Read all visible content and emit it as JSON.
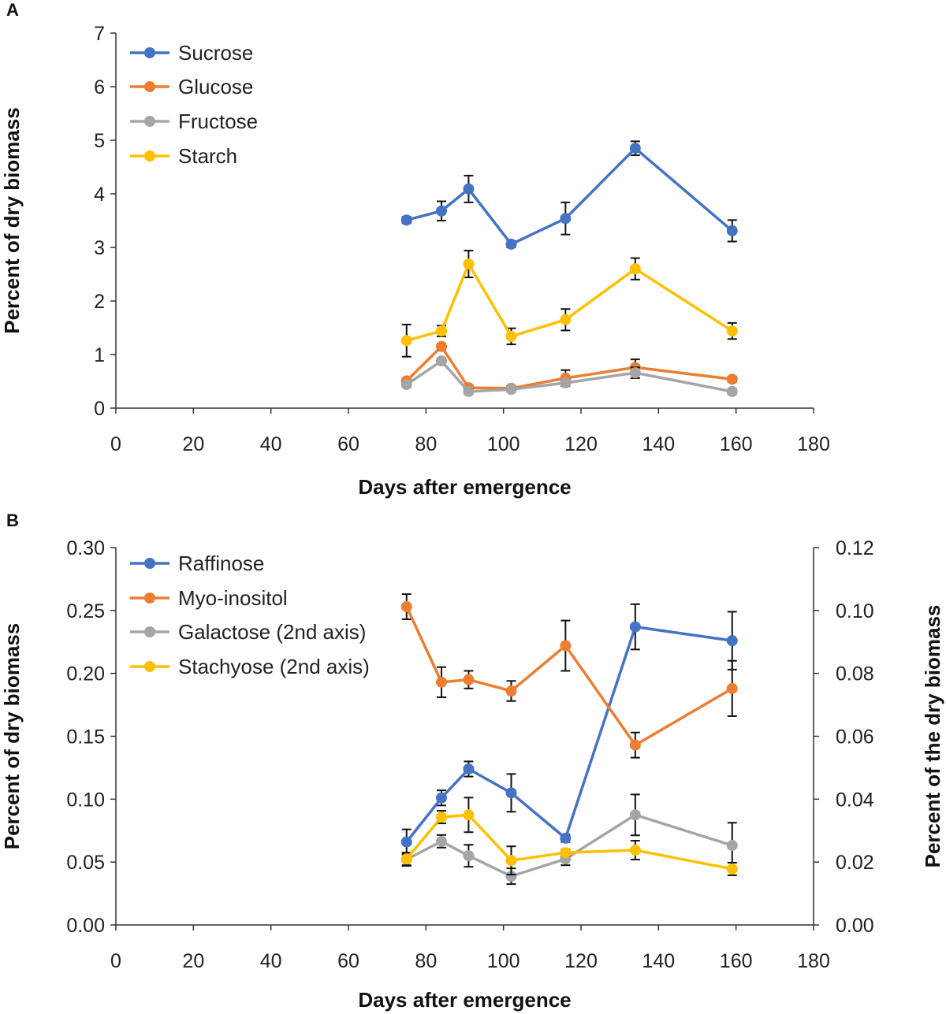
{
  "chart_data": [
    {
      "panel_label": "A",
      "type": "line",
      "xlabel": "Days after emergence",
      "ylabel": "Percent of dry biomass",
      "xlim": [
        0,
        180
      ],
      "xticks": [
        0,
        20,
        40,
        60,
        80,
        100,
        120,
        140,
        160,
        180
      ],
      "ylim": [
        0,
        7
      ],
      "yticks": [
        "0",
        "1",
        "2",
        "3",
        "4",
        "5",
        "6",
        "7"
      ],
      "grid": false,
      "legend": "top-left",
      "x": [
        75,
        84,
        91,
        102,
        116,
        134,
        159
      ],
      "series": [
        {
          "name": "Sucrose",
          "color": "#4472C4",
          "axis": "left",
          "values": [
            3.51,
            3.68,
            4.09,
            3.06,
            3.54,
            4.85,
            3.31
          ],
          "errors": [
            0.06,
            0.18,
            0.25,
            0.06,
            0.3,
            0.13,
            0.2
          ]
        },
        {
          "name": "Glucose",
          "color": "#ED7D31",
          "axis": "left",
          "values": [
            0.51,
            1.15,
            0.38,
            0.37,
            0.56,
            0.76,
            0.54
          ],
          "errors": [
            0.05,
            0.05,
            0.05,
            0.05,
            0.15,
            0.15,
            0.05
          ]
        },
        {
          "name": "Fructose",
          "color": "#A5A5A5",
          "axis": "left",
          "values": [
            0.44,
            0.88,
            0.31,
            0.35,
            0.47,
            0.66,
            0.31
          ],
          "errors": [
            0.05,
            0.05,
            0.05,
            0.05,
            0.05,
            0.1,
            0.05
          ]
        },
        {
          "name": "Starch",
          "color": "#FFC000",
          "axis": "left",
          "values": [
            1.26,
            1.44,
            2.69,
            1.34,
            1.65,
            2.6,
            1.44
          ],
          "errors": [
            0.3,
            0.1,
            0.25,
            0.15,
            0.2,
            0.2,
            0.15
          ]
        }
      ]
    },
    {
      "panel_label": "B",
      "type": "line",
      "xlabel": "Days after emergence",
      "ylabel": "Percent of dry biomass",
      "y2label": "Percent of the dry biomass",
      "xlim": [
        0,
        180
      ],
      "xticks": [
        0,
        20,
        40,
        60,
        80,
        100,
        120,
        140,
        160,
        180
      ],
      "ylim": [
        0,
        0.3
      ],
      "yticks": [
        "0.00",
        "0.05",
        "0.10",
        "0.15",
        "0.20",
        "0.25",
        "0.30"
      ],
      "y2lim": [
        0,
        0.12
      ],
      "y2ticks": [
        "0.00",
        "0.02",
        "0.04",
        "0.06",
        "0.08",
        "0.10",
        "0.12"
      ],
      "grid": false,
      "legend": "top-left",
      "x": [
        75,
        84,
        91,
        102,
        116,
        134,
        159
      ],
      "series": [
        {
          "name": "Raffinose",
          "color": "#4472C4",
          "axis": "left",
          "values": [
            0.066,
            0.101,
            0.124,
            0.105,
            0.069,
            0.237,
            0.226
          ],
          "errors": [
            0.01,
            0.006,
            0.006,
            0.015,
            0.003,
            0.018,
            0.023
          ]
        },
        {
          "name": "Myo-inositol",
          "color": "#ED7D31",
          "axis": "left",
          "values": [
            0.253,
            0.193,
            0.195,
            0.186,
            0.222,
            0.143,
            0.188
          ],
          "errors": [
            0.01,
            0.012,
            0.007,
            0.008,
            0.02,
            0.01,
            0.022
          ]
        },
        {
          "name": "Galactose (2nd axis)",
          "color": "#A5A5A5",
          "axis": "right",
          "values": [
            0.0208,
            0.0266,
            0.022,
            0.0155,
            0.021,
            0.035,
            0.0253
          ],
          "errors": [
            0.002,
            0.002,
            0.0035,
            0.0025,
            0.002,
            0.0065,
            0.0072
          ]
        },
        {
          "name": "Stachyose (2nd axis)",
          "color": "#FFC000",
          "axis": "right",
          "values": [
            0.021,
            0.0343,
            0.035,
            0.0205,
            0.023,
            0.0238,
            0.0178
          ],
          "errors": [
            0.002,
            0.002,
            0.0055,
            0.0045,
            0.001,
            0.003,
            0.002
          ]
        }
      ]
    }
  ]
}
